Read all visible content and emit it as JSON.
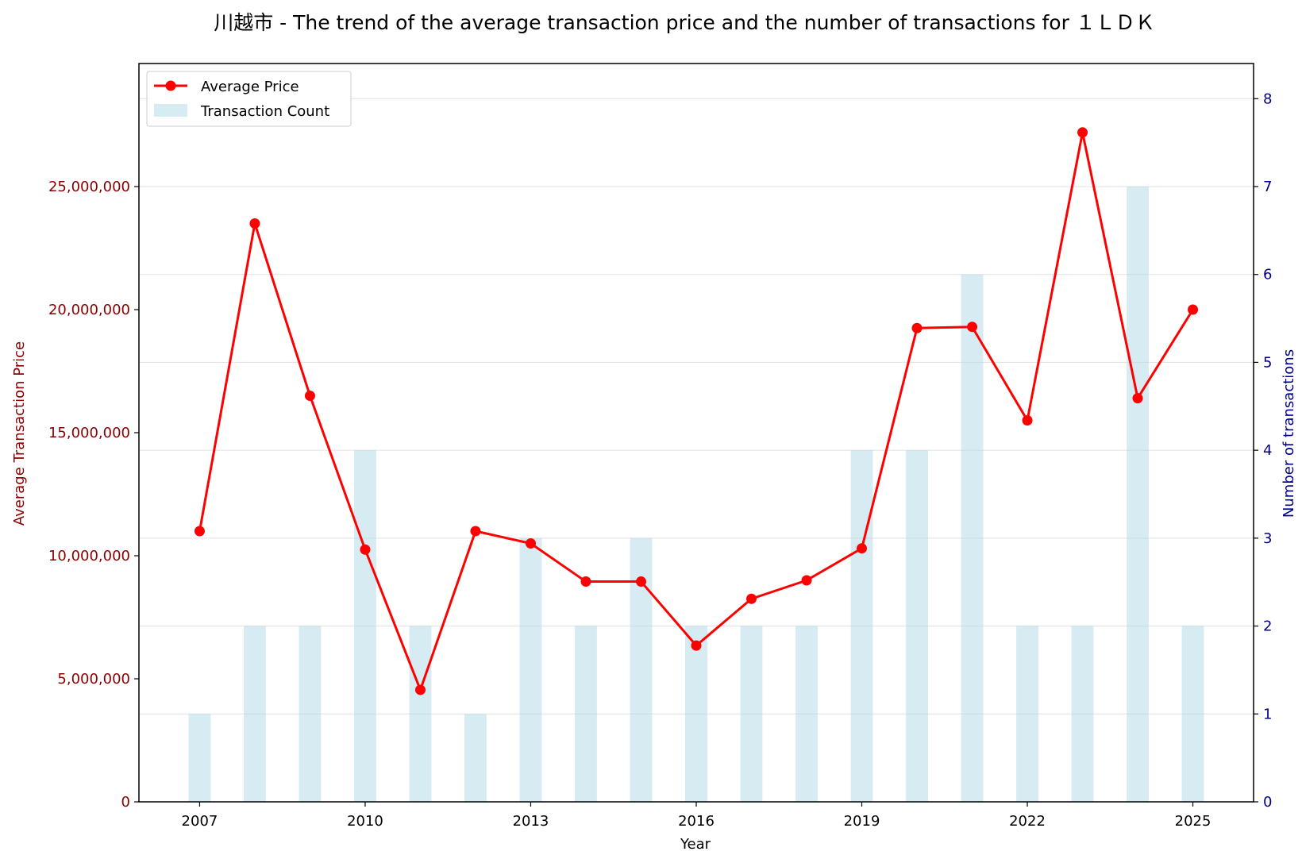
{
  "chart_data": {
    "type": "bar+line",
    "title": "川越市 - The trend of the average transaction price and the number of transactions for １ＬＤＫ",
    "xlabel": "Year",
    "ylabel_left": "Average Transaction Price",
    "ylabel_right": "Number of transactions",
    "x": [
      2007,
      2008,
      2009,
      2010,
      2011,
      2012,
      2013,
      2014,
      2015,
      2016,
      2017,
      2018,
      2019,
      2020,
      2021,
      2022,
      2023,
      2024,
      2025
    ],
    "x_ticks": [
      "2007",
      "2010",
      "2013",
      "2016",
      "2019",
      "2022",
      "2025"
    ],
    "x_tick_values": [
      2007,
      2010,
      2013,
      2016,
      2019,
      2022,
      2025
    ],
    "xlim": [
      2005.9,
      2026.1
    ],
    "series": [
      {
        "name": "Average Price",
        "kind": "line",
        "axis": "left",
        "color": "#ff0000",
        "values": [
          11000000,
          23500000,
          16500000,
          10250000,
          4550000,
          11000000,
          10500000,
          8950000,
          8950000,
          6350000,
          8250000,
          9000000,
          10300000,
          19250000,
          19300000,
          15500000,
          27200000,
          16400000,
          20000000
        ]
      },
      {
        "name": "Transaction Count",
        "kind": "bar",
        "axis": "right",
        "color": "#add8e6",
        "values": [
          1,
          2,
          2,
          4,
          2,
          1,
          3,
          2,
          3,
          2,
          2,
          2,
          4,
          4,
          6,
          2,
          2,
          7,
          2
        ]
      }
    ],
    "y_left_ticks": [
      "0",
      "5,000,000",
      "10,000,000",
      "15,000,000",
      "20,000,000",
      "25,000,000"
    ],
    "y_left_tick_values": [
      0,
      5000000,
      10000000,
      15000000,
      20000000,
      25000000
    ],
    "ylim_left": [
      0,
      30000000
    ],
    "y_right_ticks": [
      "0",
      "1",
      "2",
      "3",
      "4",
      "5",
      "6",
      "7",
      "8"
    ],
    "y_right_tick_values": [
      0,
      1,
      2,
      3,
      4,
      5,
      6,
      7,
      8
    ],
    "ylim_right": [
      0,
      8.4
    ],
    "grid": "horizontal (right axis)",
    "legend_position": "top-left",
    "colors": {
      "left_axis": "#8b0000",
      "right_axis": "#00008b",
      "grid": "#e0e0e0"
    }
  }
}
